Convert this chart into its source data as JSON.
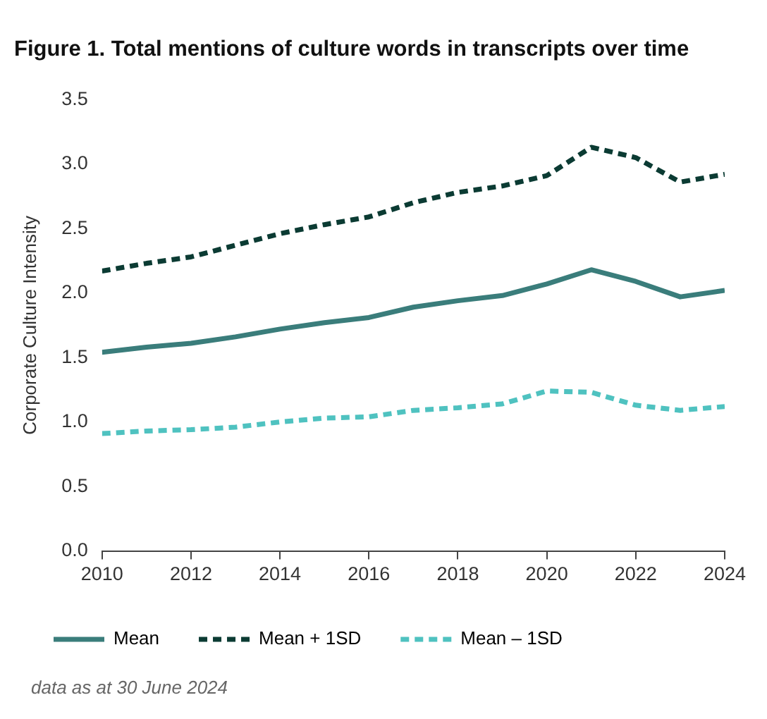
{
  "chart_data": {
    "type": "line",
    "title": "Figure 1. Total mentions of culture words in transcripts over time",
    "ylabel": "Corporate Culture Intensity",
    "x": [
      2010,
      2011,
      2012,
      2013,
      2014,
      2015,
      2016,
      2017,
      2018,
      2019,
      2020,
      2021,
      2022,
      2023,
      2024
    ],
    "xlim": [
      2010,
      2024
    ],
    "xticks": [
      2010,
      2012,
      2014,
      2016,
      2018,
      2020,
      2022,
      2024
    ],
    "ylim": [
      0,
      3.5
    ],
    "yticks": [
      {
        "value": 0,
        "label": "0.0"
      },
      {
        "value": 0.5,
        "label": "0.5"
      },
      {
        "value": 1,
        "label": "1.0"
      },
      {
        "value": 1.5,
        "label": "1.5"
      },
      {
        "value": 2,
        "label": "2.0"
      },
      {
        "value": 2.5,
        "label": "2.5"
      },
      {
        "value": 3,
        "label": "3.0"
      },
      {
        "value": 3.5,
        "label": "3.5"
      }
    ],
    "grid": false,
    "legend": "bottom",
    "marker": "none",
    "series": [
      {
        "name": "Mean",
        "color": "#3a7d7b",
        "line_style": "solid",
        "values": [
          1.54,
          1.58,
          1.61,
          1.66,
          1.72,
          1.77,
          1.81,
          1.89,
          1.94,
          1.98,
          2.07,
          2.18,
          2.09,
          1.97,
          2.02
        ]
      },
      {
        "name": "Mean + 1SD",
        "color": "#0b3b33",
        "line_style": "dashed",
        "values": [
          2.17,
          2.23,
          2.28,
          2.37,
          2.46,
          2.53,
          2.59,
          2.7,
          2.78,
          2.83,
          2.91,
          3.13,
          3.05,
          2.86,
          2.92
        ]
      },
      {
        "name": "Mean – 1SD",
        "color": "#4fc2c0",
        "line_style": "dashed",
        "values": [
          0.91,
          0.93,
          0.94,
          0.96,
          1.0,
          1.03,
          1.04,
          1.09,
          1.11,
          1.14,
          1.24,
          1.23,
          1.13,
          1.09,
          1.12
        ]
      }
    ],
    "annotations": [
      "data as at 30 June 2024"
    ]
  }
}
